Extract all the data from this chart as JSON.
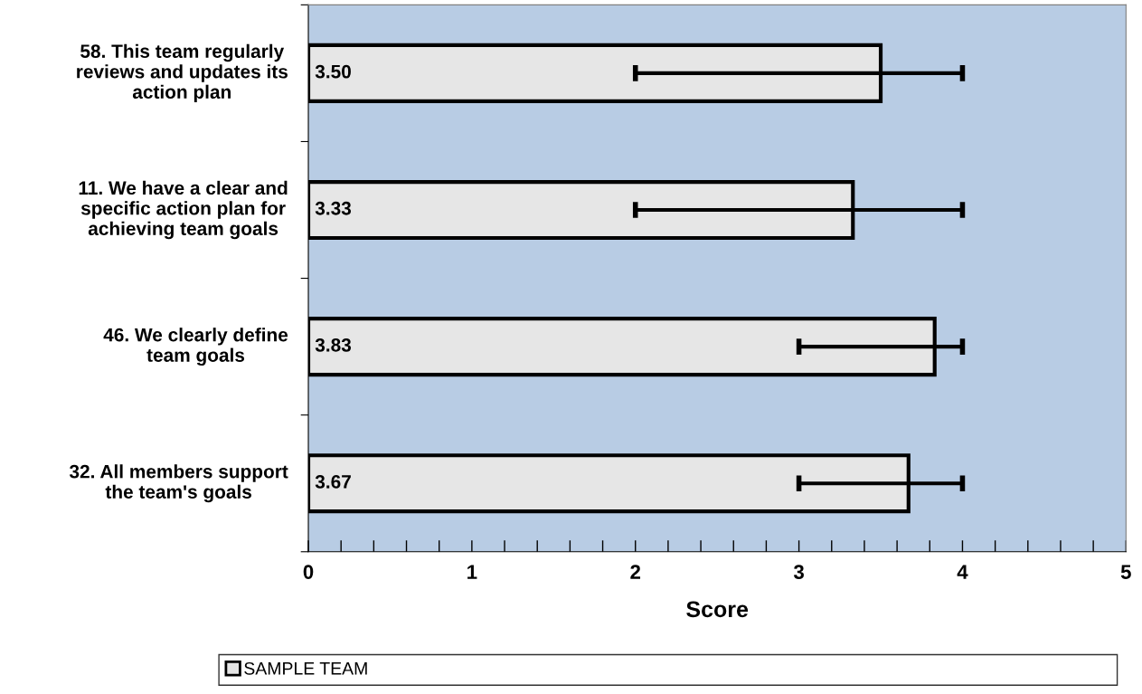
{
  "chart_data": {
    "type": "bar",
    "orientation": "horizontal",
    "xlabel": "Score",
    "categories": [
      "58. This team regularly\nreviews and updates its\naction plan",
      "11. We have a clear and\nspecific action plan for\nachieving team goals",
      "46. We clearly define\nteam goals",
      "32. All members support\nthe team's goals"
    ],
    "series": [
      {
        "name": "SAMPLE TEAM",
        "color": "#e6e6e6",
        "values": [
          3.5,
          3.33,
          3.83,
          3.67
        ],
        "value_labels": [
          "3.50",
          "3.33",
          "3.83",
          "3.67"
        ],
        "errors": [
          [
            2,
            4
          ],
          [
            2,
            4
          ],
          [
            3,
            4
          ],
          [
            3,
            4
          ]
        ]
      }
    ],
    "xlim": [
      0,
      5
    ],
    "xticks": [
      0,
      {
        "value": 0.2,
        "label": null
      },
      {
        "value": 0.4,
        "label": null
      },
      {
        "value": 0.6,
        "label": null
      },
      {
        "value": 0.8,
        "label": null
      },
      1,
      {
        "value": 1.2,
        "label": null
      },
      {
        "value": 1.4,
        "label": null
      },
      {
        "value": 1.6,
        "label": null
      },
      {
        "value": 1.8,
        "label": null
      },
      2,
      {
        "value": 2.2,
        "label": null
      },
      {
        "value": 2.4,
        "label": null
      },
      {
        "value": 2.6,
        "label": null
      },
      {
        "value": 2.8,
        "label": null
      },
      3,
      {
        "value": 3.2,
        "label": null
      },
      {
        "value": 3.4,
        "label": null
      },
      {
        "value": 3.6,
        "label": null
      },
      {
        "value": 3.8,
        "label": null
      },
      4,
      {
        "value": 4.2,
        "label": null
      },
      {
        "value": 4.4,
        "label": null
      },
      {
        "value": 4.6,
        "label": null
      },
      {
        "value": 4.8,
        "label": null
      },
      5
    ],
    "grid": false,
    "legend": "bottom"
  }
}
